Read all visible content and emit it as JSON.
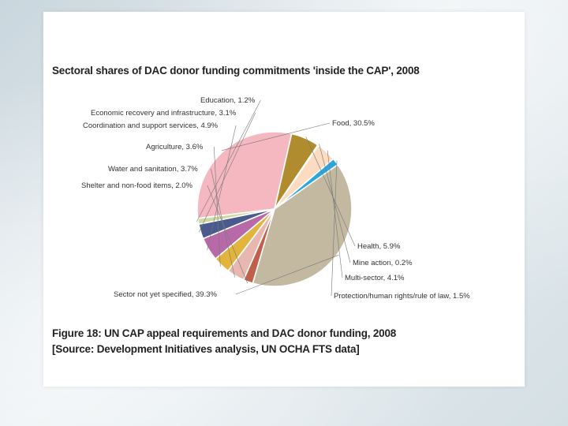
{
  "chart_data": {
    "type": "pie",
    "title": "Sectoral shares of DAC donor funding commitments 'inside the CAP', 2008",
    "caption_line1": "Figure 18: UN CAP appeal requirements and DAC donor funding, 2008",
    "caption_line2": "[Source: Development Initiatives analysis, UN OCHA FTS data]",
    "slices": [
      {
        "label": "Food, 30.5%",
        "value": 30.5,
        "color": "#f5b8c0"
      },
      {
        "label": "Health, 5.9%",
        "value": 5.9,
        "color": "#b08c2e"
      },
      {
        "label": "Mine action, 0.2%",
        "value": 0.2,
        "color": "#d9c88c"
      },
      {
        "label": "Multi-sector, 4.1%",
        "value": 4.1,
        "color": "#fbdcc0"
      },
      {
        "label": "Protection/human rights/rule of law, 1.5%",
        "value": 1.5,
        "color": "#2aa7dc"
      },
      {
        "label": "Sector not yet specified, 39.3%",
        "value": 39.3,
        "color": "#c3b8a0"
      },
      {
        "label": "Shelter and non-food items, 2.0%",
        "value": 2.0,
        "color": "#c0604a"
      },
      {
        "label": "Water and sanitation, 3.7%",
        "value": 3.7,
        "color": "#e8b8b0"
      },
      {
        "label": "Agriculture, 3.6%",
        "value": 3.6,
        "color": "#e3b43c"
      },
      {
        "label": "Coordination and support services, 4.9%",
        "value": 4.9,
        "color": "#b86aa8"
      },
      {
        "label": "Economic recovery and infrastructure, 3.1%",
        "value": 3.1,
        "color": "#4a5a8c"
      },
      {
        "label": "Education, 1.2%",
        "value": 1.2,
        "color": "#cdd9a0"
      }
    ]
  }
}
